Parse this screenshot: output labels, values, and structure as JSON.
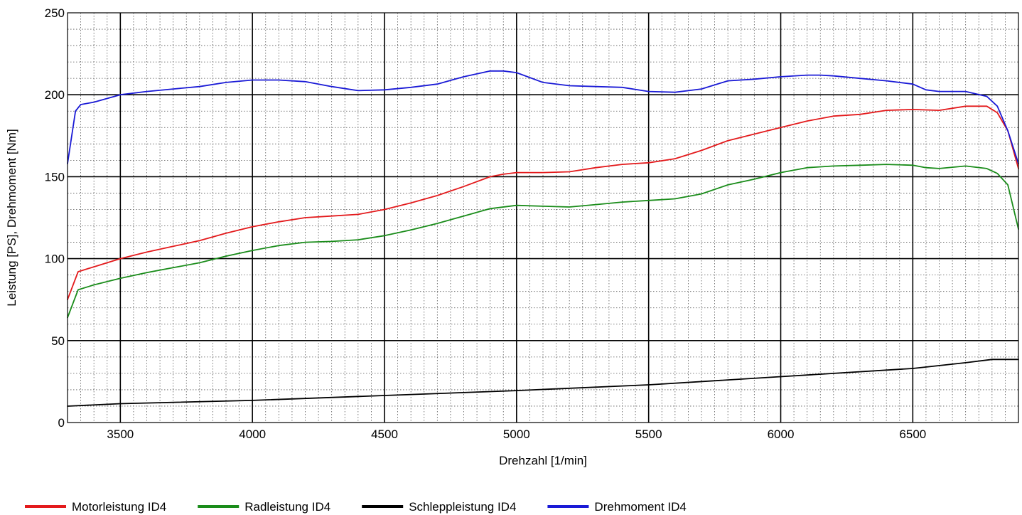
{
  "chart_data": {
    "type": "line",
    "title": "",
    "xlabel": "Drehzahl [1/min]",
    "ylabel": "Leistung [PS], Drehmoment [Nm]",
    "xlim": [
      3300,
      6900
    ],
    "ylim": [
      0,
      250
    ],
    "x_ticks": [
      3500,
      4000,
      4500,
      5000,
      5500,
      6000,
      6500
    ],
    "y_ticks": [
      0,
      50,
      100,
      150,
      200,
      250
    ],
    "grid": true,
    "grid_style": "major solid black, minor dotted",
    "legend_position": "bottom",
    "series": [
      {
        "name": "Motorleistung ID4",
        "color": "#e31a1c",
        "x": [
          3300,
          3340,
          3380,
          3400,
          3500,
          3600,
          3700,
          3800,
          3900,
          4000,
          4100,
          4200,
          4300,
          4400,
          4500,
          4600,
          4700,
          4800,
          4900,
          4950,
          5000,
          5100,
          5200,
          5300,
          5400,
          5500,
          5600,
          5700,
          5800,
          5900,
          6000,
          6100,
          6200,
          6300,
          6400,
          6500,
          6600,
          6700,
          6780,
          6820,
          6860,
          6900
        ],
        "y": [
          75,
          92,
          94,
          95,
          100,
          104,
          107.5,
          111,
          115.5,
          119.5,
          122.5,
          125,
          126,
          127,
          130,
          134,
          138.5,
          144,
          150,
          151.5,
          152.5,
          152.5,
          153,
          155.5,
          157.5,
          158.5,
          161,
          166,
          172,
          176,
          180,
          184,
          187,
          188,
          190.5,
          191,
          190.5,
          193,
          193,
          189,
          178,
          155
        ]
      },
      {
        "name": "Radleistung ID4",
        "color": "#1a8c1a",
        "x": [
          3300,
          3340,
          3380,
          3400,
          3500,
          3600,
          3700,
          3800,
          3900,
          4000,
          4100,
          4200,
          4300,
          4400,
          4500,
          4600,
          4700,
          4800,
          4900,
          5000,
          5100,
          5200,
          5300,
          5400,
          5500,
          5600,
          5700,
          5800,
          5900,
          6000,
          6100,
          6200,
          6300,
          6400,
          6500,
          6550,
          6600,
          6700,
          6780,
          6820,
          6860,
          6900
        ],
        "y": [
          64,
          81,
          83,
          84,
          88,
          91.5,
          94.5,
          97.5,
          101.5,
          105,
          108,
          110,
          110.5,
          111.5,
          114,
          117.5,
          121.5,
          126,
          130.5,
          132.5,
          132,
          131.5,
          133,
          134.5,
          135.5,
          136.5,
          139.5,
          145,
          148.5,
          152.5,
          155.5,
          156.5,
          157,
          157.5,
          157,
          155.5,
          155,
          156.5,
          155,
          152,
          145,
          118
        ]
      },
      {
        "name": "Schleppleistung ID4",
        "color": "#000000",
        "x": [
          3300,
          3500,
          4000,
          4500,
          5000,
          5500,
          6000,
          6500,
          6700,
          6800,
          6900
        ],
        "y": [
          10,
          11.5,
          13.5,
          16.5,
          19.5,
          23,
          28,
          33,
          36.5,
          38.5,
          38.5
        ]
      },
      {
        "name": "Drehmoment ID4",
        "color": "#1a1ad6",
        "x": [
          3300,
          3330,
          3350,
          3400,
          3500,
          3600,
          3700,
          3800,
          3900,
          4000,
          4100,
          4200,
          4300,
          4400,
          4500,
          4600,
          4700,
          4800,
          4900,
          4950,
          5000,
          5100,
          5200,
          5300,
          5400,
          5500,
          5600,
          5700,
          5800,
          5900,
          6000,
          6100,
          6150,
          6200,
          6300,
          6400,
          6500,
          6550,
          6600,
          6700,
          6780,
          6820,
          6860,
          6900
        ],
        "y": [
          158,
          190,
          194,
          195.5,
          200,
          202,
          203.5,
          205,
          207.5,
          209,
          209,
          208,
          205,
          202.5,
          203,
          204.5,
          206.5,
          211,
          214.5,
          214.5,
          213.5,
          207.5,
          205.5,
          205,
          204.5,
          202,
          201.5,
          203.5,
          208.5,
          209.5,
          211,
          212,
          212,
          211.5,
          210,
          208.5,
          206.5,
          203,
          202,
          202,
          199,
          193,
          178,
          158
        ]
      }
    ]
  }
}
